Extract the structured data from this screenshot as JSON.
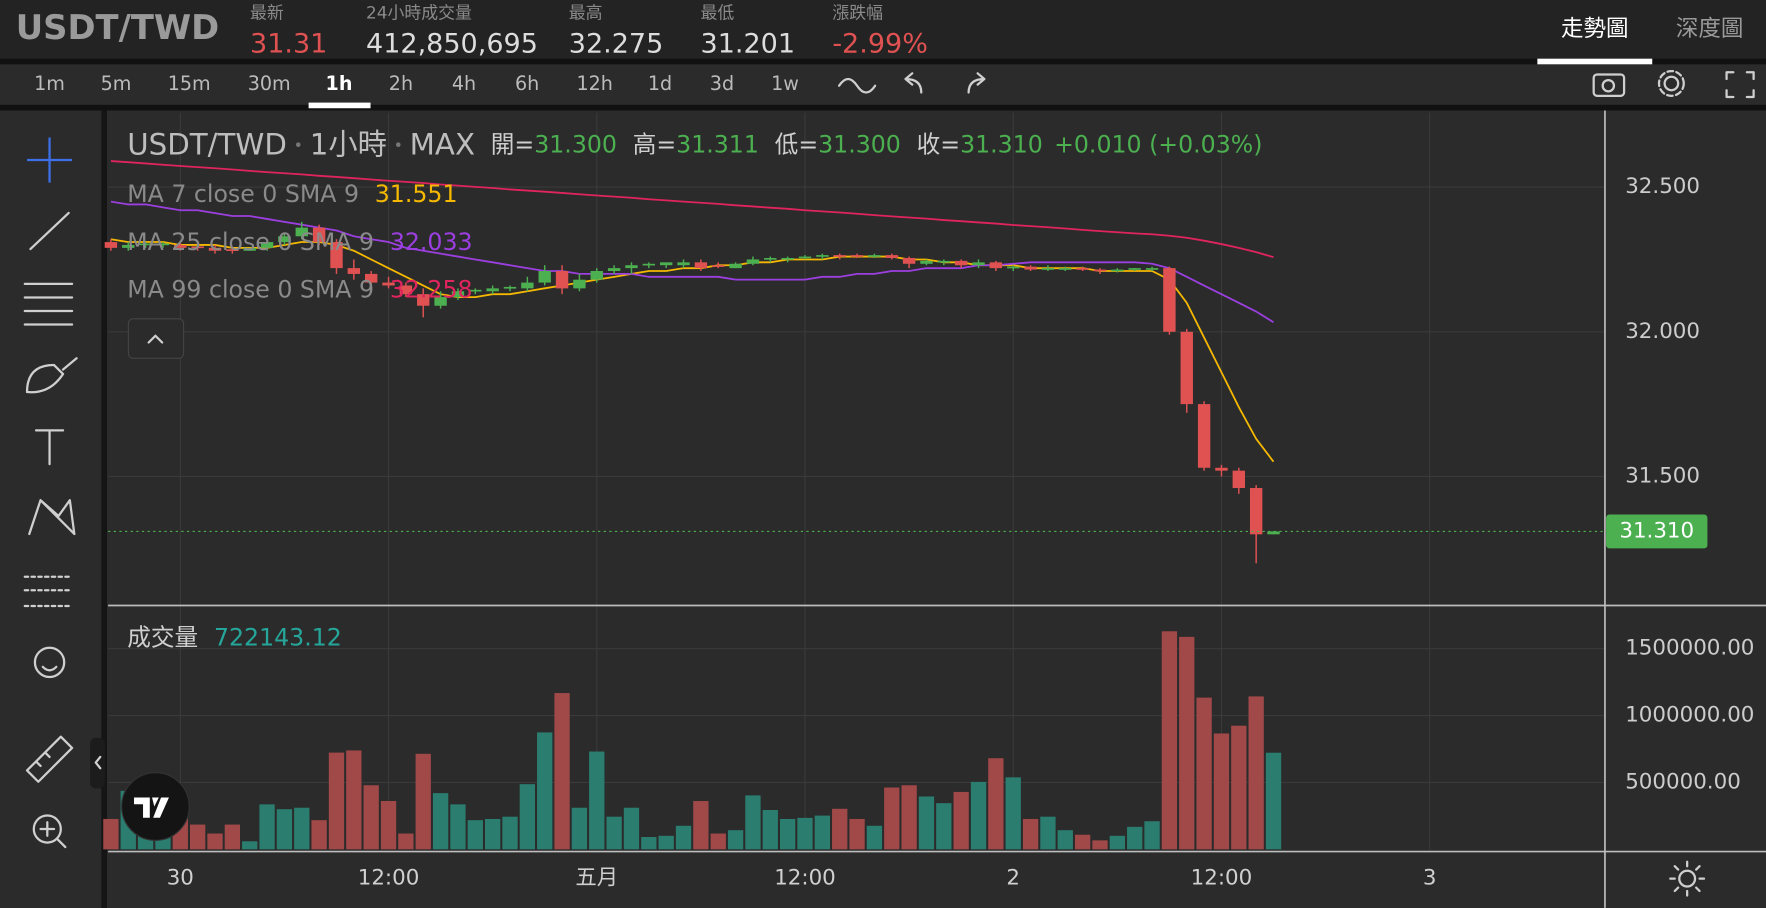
{
  "header": {
    "pair": "USDT/TWD",
    "stats": [
      {
        "label": "最新",
        "value": "31.31",
        "color": "#e05252"
      },
      {
        "label": "24小時成交量",
        "value": "412,850,695",
        "color": "#dddddd"
      },
      {
        "label": "最高",
        "value": "32.275",
        "color": "#dddddd"
      },
      {
        "label": "最低",
        "value": "31.201",
        "color": "#dddddd"
      },
      {
        "label": "漲跌幅",
        "value": "-2.99%",
        "color": "#e05252"
      }
    ],
    "tabs": [
      "走勢圖",
      "深度圖"
    ],
    "active_tab": 0
  },
  "timeframes": {
    "items": [
      "1m",
      "5m",
      "15m",
      "30m",
      "1h",
      "2h",
      "4h",
      "6h",
      "12h",
      "1d",
      "3d",
      "1w"
    ],
    "active": 4
  },
  "chart_data": {
    "type": "candlestick",
    "title": "USDT/TWD",
    "interval": "1小時",
    "source": "MAX",
    "ohlc_legend": [
      {
        "label": "開=",
        "value": "31.300"
      },
      {
        "label": "高=",
        "value": "31.311"
      },
      {
        "label": "低=",
        "value": "31.300"
      },
      {
        "label": "收=",
        "value": "31.310"
      }
    ],
    "change": "+0.010 (+0.03%)",
    "up_color": "#4caf50",
    "down_color": "#e05252",
    "open": [
      32.31,
      32.29,
      32.3,
      32.3,
      32.3,
      32.295,
      32.29,
      32.285,
      32.28,
      32.29,
      32.31,
      32.33,
      32.36,
      32.31,
      32.22,
      32.2,
      32.17,
      32.16,
      32.13,
      32.09,
      32.12,
      32.14,
      32.14,
      32.15,
      32.15,
      32.17,
      32.21,
      32.15,
      32.18,
      32.21,
      32.22,
      32.23,
      32.23,
      32.23,
      32.24,
      32.23,
      32.22,
      32.235,
      32.25,
      32.25,
      32.255,
      32.26,
      32.265,
      32.265,
      32.26,
      32.265,
      32.255,
      32.235,
      32.24,
      32.245,
      32.23,
      32.24,
      32.22,
      32.225,
      32.215,
      32.215,
      32.22,
      32.215,
      32.21,
      32.215,
      32.215,
      32.22,
      32.0,
      31.75,
      31.53,
      31.52,
      31.46,
      31.3
    ],
    "high": [
      32.32,
      32.31,
      32.31,
      32.31,
      32.31,
      32.3,
      32.3,
      32.29,
      32.29,
      32.32,
      32.34,
      32.38,
      32.37,
      32.32,
      32.25,
      32.21,
      32.19,
      32.17,
      32.15,
      32.14,
      32.15,
      32.15,
      32.16,
      32.16,
      32.19,
      32.23,
      32.23,
      32.2,
      32.22,
      32.23,
      32.24,
      32.24,
      32.24,
      32.25,
      32.25,
      32.24,
      32.24,
      32.26,
      32.26,
      32.26,
      32.265,
      32.27,
      32.27,
      32.27,
      32.27,
      32.27,
      32.26,
      32.25,
      32.25,
      32.25,
      32.25,
      32.245,
      32.23,
      32.23,
      32.23,
      32.225,
      32.225,
      32.22,
      32.22,
      32.22,
      32.225,
      32.225,
      32.01,
      31.76,
      31.54,
      31.53,
      31.47,
      31.311
    ],
    "low": [
      32.28,
      32.28,
      32.29,
      32.29,
      32.28,
      32.28,
      32.27,
      32.27,
      32.28,
      32.28,
      32.3,
      32.32,
      32.3,
      32.2,
      32.18,
      32.16,
      32.15,
      32.12,
      32.05,
      32.08,
      32.11,
      32.13,
      32.13,
      32.14,
      32.14,
      32.16,
      32.13,
      32.14,
      32.17,
      32.2,
      32.2,
      32.22,
      32.22,
      32.22,
      32.21,
      32.22,
      32.22,
      32.23,
      32.24,
      32.24,
      32.25,
      32.25,
      32.25,
      32.255,
      32.255,
      32.25,
      32.22,
      32.23,
      32.23,
      32.22,
      32.22,
      32.21,
      32.21,
      32.21,
      32.21,
      32.21,
      32.21,
      32.2,
      32.205,
      32.21,
      32.21,
      31.99,
      31.72,
      31.52,
      31.5,
      31.44,
      31.2,
      31.3
    ],
    "close": [
      32.29,
      32.3,
      32.305,
      32.305,
      32.29,
      32.29,
      32.28,
      32.28,
      32.29,
      32.31,
      32.33,
      32.36,
      32.31,
      32.22,
      32.2,
      32.17,
      32.16,
      32.13,
      32.09,
      32.12,
      32.14,
      32.145,
      32.15,
      32.155,
      32.17,
      32.21,
      32.15,
      32.18,
      32.21,
      32.22,
      32.23,
      32.235,
      32.24,
      32.24,
      32.22,
      32.225,
      32.235,
      32.25,
      32.255,
      32.255,
      32.26,
      32.265,
      32.26,
      32.26,
      32.265,
      32.255,
      32.235,
      32.245,
      32.245,
      32.23,
      32.24,
      32.22,
      32.225,
      32.215,
      32.22,
      32.22,
      32.215,
      32.21,
      32.215,
      32.22,
      32.22,
      32.0,
      31.75,
      31.53,
      31.52,
      31.46,
      31.3,
      31.31
    ],
    "lines": [
      {
        "name": "MA 7 close 0 SMA 9",
        "color": "#f5b800",
        "values": [
          32.32,
          32.31,
          32.31,
          32.31,
          32.3,
          32.3,
          32.3,
          32.29,
          32.29,
          32.29,
          32.3,
          32.31,
          32.31,
          32.3,
          32.28,
          32.25,
          32.22,
          32.19,
          32.16,
          32.13,
          32.12,
          32.12,
          32.13,
          32.13,
          32.14,
          32.15,
          32.16,
          32.17,
          32.18,
          32.19,
          32.2,
          32.21,
          32.21,
          32.22,
          32.22,
          32.23,
          32.23,
          32.24,
          32.24,
          32.25,
          32.25,
          32.25,
          32.26,
          32.26,
          32.26,
          32.26,
          32.25,
          32.25,
          32.24,
          32.24,
          32.23,
          32.23,
          32.23,
          32.22,
          32.22,
          32.22,
          32.22,
          32.21,
          32.21,
          32.21,
          32.21,
          32.18,
          32.1,
          31.98,
          31.86,
          31.74,
          31.63,
          31.551
        ]
      },
      {
        "name": "MA 25 close 0 SMA 9",
        "color": "#9c3fe0",
        "values": [
          32.45,
          32.44,
          32.44,
          32.43,
          32.42,
          32.42,
          32.41,
          32.4,
          32.4,
          32.39,
          32.38,
          32.37,
          32.36,
          32.35,
          32.33,
          32.32,
          32.31,
          32.29,
          32.28,
          32.27,
          32.26,
          32.25,
          32.24,
          32.23,
          32.22,
          32.21,
          32.21,
          32.2,
          32.2,
          32.2,
          32.2,
          32.19,
          32.19,
          32.19,
          32.19,
          32.19,
          32.18,
          32.18,
          32.18,
          32.18,
          32.18,
          32.19,
          32.19,
          32.2,
          32.2,
          32.21,
          32.21,
          32.22,
          32.22,
          32.22,
          32.23,
          32.23,
          32.235,
          32.24,
          32.24,
          32.24,
          32.24,
          32.24,
          32.24,
          32.24,
          32.235,
          32.22,
          32.19,
          32.16,
          32.13,
          32.1,
          32.07,
          32.033
        ]
      },
      {
        "name": "MA 99 close 0 SMA 9",
        "color": "#e0245e",
        "values": [
          32.59,
          32.586,
          32.582,
          32.577,
          32.573,
          32.569,
          32.565,
          32.561,
          32.556,
          32.552,
          32.548,
          32.544,
          32.539,
          32.535,
          32.531,
          32.526,
          32.522,
          32.518,
          32.514,
          32.509,
          32.505,
          32.501,
          32.497,
          32.492,
          32.488,
          32.484,
          32.48,
          32.475,
          32.471,
          32.467,
          32.463,
          32.458,
          32.454,
          32.45,
          32.446,
          32.442,
          32.437,
          32.433,
          32.429,
          32.425,
          32.42,
          32.416,
          32.412,
          32.408,
          32.403,
          32.399,
          32.395,
          32.391,
          32.386,
          32.382,
          32.378,
          32.374,
          32.369,
          32.365,
          32.361,
          32.357,
          32.352,
          32.348,
          32.344,
          32.34,
          32.337,
          32.332,
          32.325,
          32.315,
          32.303,
          32.29,
          32.275,
          32.258
        ]
      }
    ],
    "ylim": [
      31.056,
      32.757
    ],
    "yticks": [
      {
        "value": 31.5,
        "label": "31.500"
      },
      {
        "value": 32,
        "label": "32.000"
      },
      {
        "value": 32.5,
        "label": "32.500"
      }
    ],
    "last_price": {
      "value": 31.31,
      "label": "31.310"
    },
    "xlim": [
      -0.16,
      86.1
    ],
    "xticks": [
      {
        "value": 4,
        "label": "30"
      },
      {
        "value": 16,
        "label": "12:00"
      },
      {
        "value": 28,
        "label": "五月"
      },
      {
        "value": 40,
        "label": "12:00"
      },
      {
        "value": 52,
        "label": "2"
      },
      {
        "value": 64,
        "label": "12:00"
      },
      {
        "value": 76,
        "label": "3"
      }
    ],
    "grid": true,
    "volume": {
      "label": "成交量",
      "up_color": "#2a7d6f",
      "down_color": "#a14848",
      "values": [
        227000,
        437000,
        285000,
        300000,
        300000,
        185000,
        118000,
        185000,
        60000,
        336000,
        300000,
        311000,
        218000,
        723000,
        739000,
        479000,
        361000,
        118000,
        714000,
        420000,
        336000,
        218000,
        227000,
        244000,
        487000,
        874000,
        1168000,
        311000,
        731000,
        244000,
        311000,
        92000,
        101000,
        176000,
        361000,
        118000,
        143000,
        403000,
        294000,
        227000,
        235000,
        252000,
        303000,
        227000,
        176000,
        462000,
        479000,
        395000,
        345000,
        429000,
        504000,
        681000,
        538000,
        227000,
        244000,
        143000,
        109000,
        67000,
        101000,
        168000,
        210000,
        1630000,
        1588000,
        1134000,
        866000,
        924000,
        1143000,
        722143.12
      ],
      "ylim": [
        0,
        1810000
      ],
      "yticks": [
        {
          "value": 500000,
          "label": "500000.00"
        },
        {
          "value": 1000000,
          "label": "1000000.00"
        },
        {
          "value": 1500000,
          "label": "1500000.00"
        }
      ]
    }
  }
}
